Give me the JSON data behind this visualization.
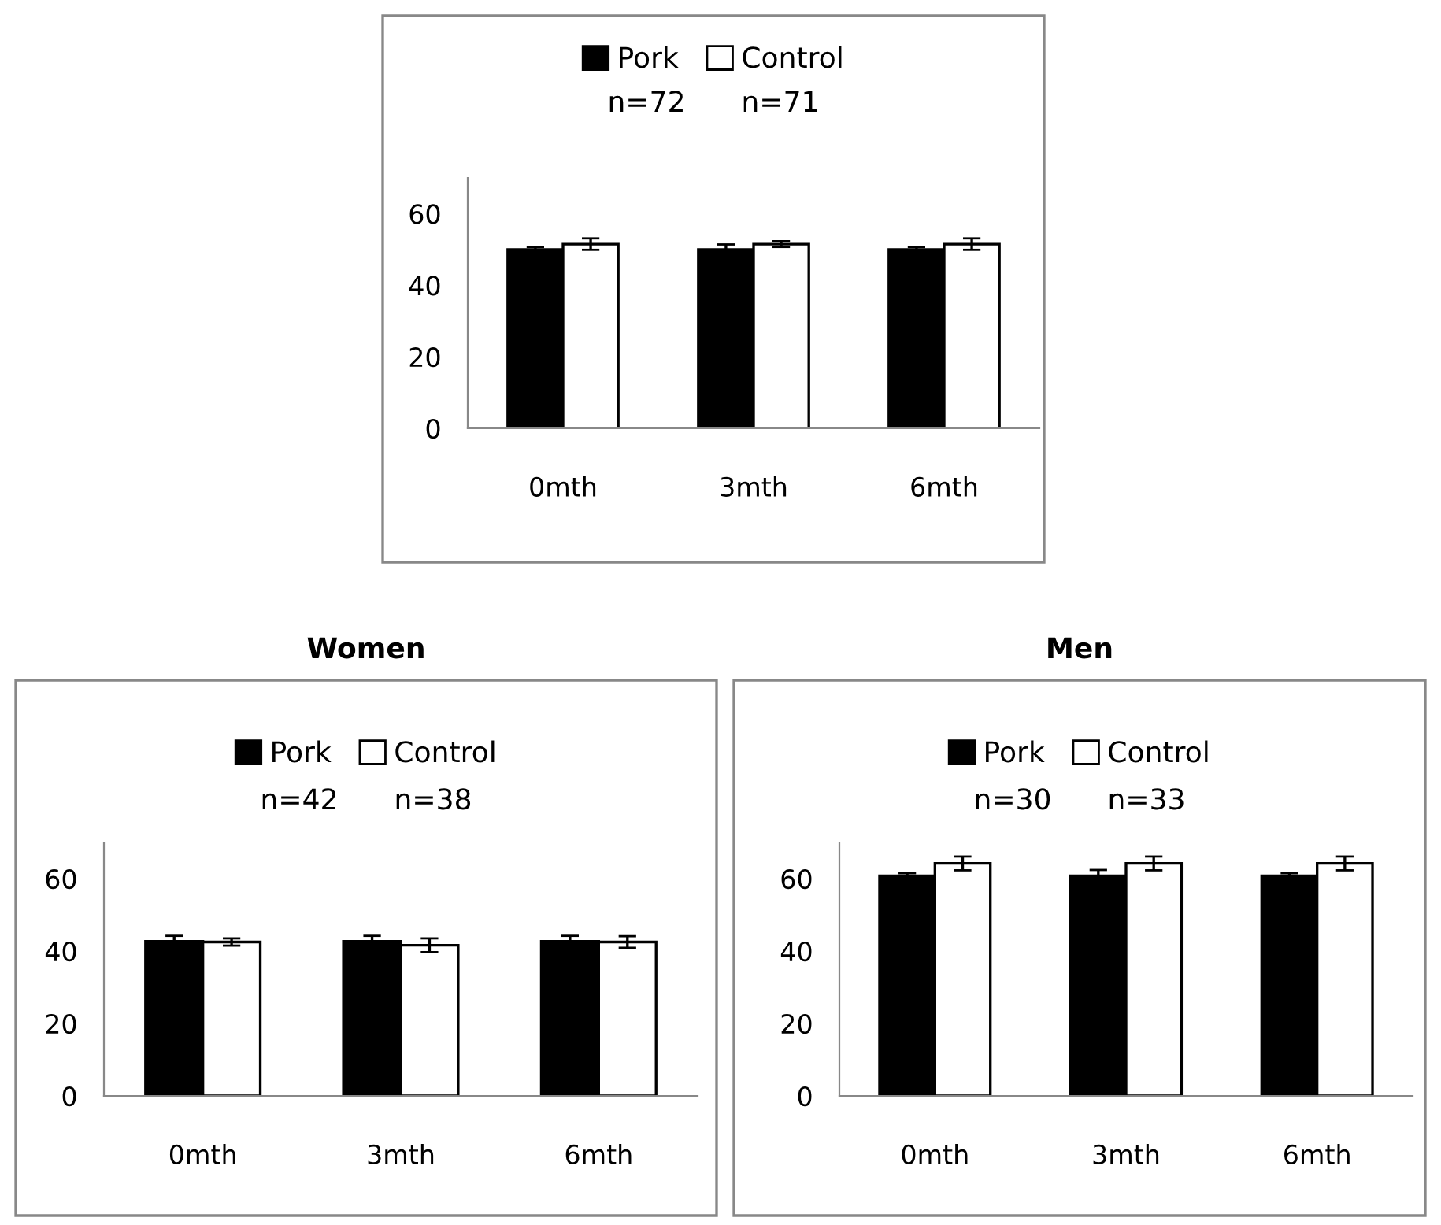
{
  "chart_data": [
    {
      "type": "bar",
      "categories": [
        "0mth",
        "3mth",
        "6mth"
      ],
      "series": [
        {
          "name": "Pork",
          "color": "#000000",
          "values": [
            50.0,
            50.0,
            50.0
          ],
          "errors": [
            0.7,
            1.4,
            0.7
          ]
        },
        {
          "name": "Control",
          "color": "#ffffff",
          "values": [
            51.5,
            51.5,
            51.5
          ],
          "errors": [
            1.6,
            0.8,
            1.6
          ]
        }
      ],
      "ylim": [
        0,
        70
      ],
      "yticks": [
        0,
        20,
        40,
        60
      ],
      "grid": false,
      "legend": "top",
      "annotations": [
        "n=72",
        "n=71"
      ]
    },
    {
      "type": "bar",
      "title": "Women",
      "categories": [
        "0mth",
        "3mth",
        "6mth"
      ],
      "series": [
        {
          "name": "Pork",
          "color": "#000000",
          "values": [
            42.7,
            42.7,
            42.7
          ],
          "errors": [
            1.5,
            1.5,
            1.5
          ]
        },
        {
          "name": "Control",
          "color": "#ffffff",
          "values": [
            42.5,
            41.6,
            42.5
          ],
          "errors": [
            1.0,
            1.9,
            1.6
          ]
        }
      ],
      "ylim": [
        0,
        70
      ],
      "yticks": [
        0,
        20,
        40,
        60
      ],
      "grid": false,
      "legend": "top",
      "annotations": [
        "n=42",
        "n=38"
      ]
    },
    {
      "type": "bar",
      "title": "Men",
      "categories": [
        "0mth",
        "3mth",
        "6mth"
      ],
      "series": [
        {
          "name": "Pork",
          "color": "#000000",
          "values": [
            60.8,
            60.8,
            60.8
          ],
          "errors": [
            0.7,
            1.6,
            0.7
          ]
        },
        {
          "name": "Control",
          "color": "#ffffff",
          "values": [
            64.2,
            64.2,
            64.2
          ],
          "errors": [
            1.9,
            1.9,
            1.9
          ]
        }
      ],
      "ylim": [
        0,
        70
      ],
      "yticks": [
        0,
        20,
        40,
        60
      ],
      "grid": false,
      "legend": "top",
      "annotations": [
        "n=30",
        "n=33"
      ]
    }
  ]
}
